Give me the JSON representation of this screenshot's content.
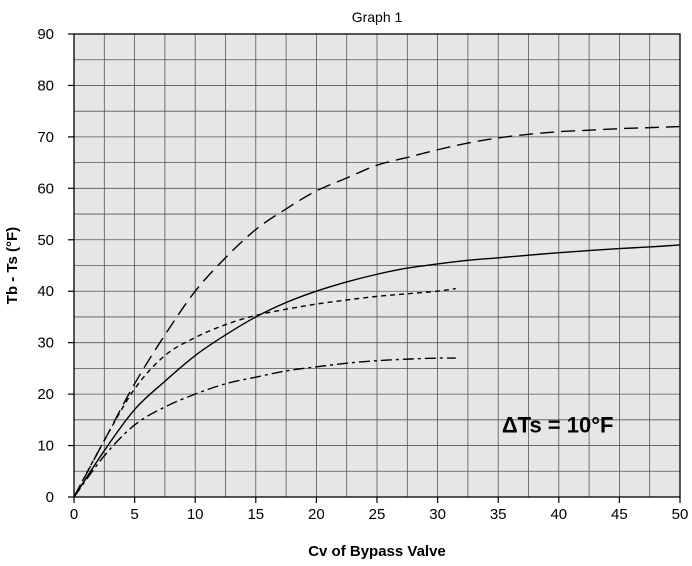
{
  "chart_data": {
    "type": "line",
    "title": "Graph 1",
    "xlabel": "Cv of Bypass Valve",
    "ylabel": "Tb - Ts (°F)",
    "xlim": [
      0,
      50
    ],
    "ylim": [
      0,
      90
    ],
    "xticks": [
      "0",
      "5",
      "10",
      "15",
      "20",
      "25",
      "30",
      "35",
      "40",
      "45",
      "50"
    ],
    "yticks": [
      "0",
      "10",
      "20",
      "30",
      "40",
      "50",
      "60",
      "70",
      "80",
      "90"
    ],
    "grid": true,
    "annotation": "ΔTs = 10°F",
    "series": [
      {
        "style": "long-dash",
        "points": [
          [
            0,
            0
          ],
          [
            2.5,
            11
          ],
          [
            5,
            22
          ],
          [
            7.5,
            31.5
          ],
          [
            10,
            40
          ],
          [
            12.5,
            46.5
          ],
          [
            15,
            52
          ],
          [
            17.5,
            56
          ],
          [
            20,
            59.5
          ],
          [
            22.5,
            62
          ],
          [
            25,
            64.5
          ],
          [
            27.5,
            66
          ],
          [
            30,
            67.5
          ],
          [
            32.5,
            68.8
          ],
          [
            35,
            69.8
          ],
          [
            37.5,
            70.5
          ],
          [
            40,
            71
          ],
          [
            42.5,
            71.3
          ],
          [
            45,
            71.6
          ],
          [
            47.5,
            71.8
          ],
          [
            50,
            72
          ]
        ]
      },
      {
        "style": "solid",
        "points": [
          [
            0,
            0
          ],
          [
            2.5,
            9
          ],
          [
            5,
            17
          ],
          [
            7.5,
            22.5
          ],
          [
            10,
            27.5
          ],
          [
            12.5,
            31.5
          ],
          [
            15,
            35
          ],
          [
            17.5,
            37.8
          ],
          [
            20,
            40
          ],
          [
            22.5,
            41.8
          ],
          [
            25,
            43.3
          ],
          [
            27.5,
            44.5
          ],
          [
            30,
            45.3
          ],
          [
            32.5,
            46
          ],
          [
            35,
            46.5
          ],
          [
            37.5,
            47
          ],
          [
            40,
            47.5
          ],
          [
            42.5,
            47.9
          ],
          [
            45,
            48.3
          ],
          [
            47.5,
            48.6
          ],
          [
            50,
            49
          ]
        ]
      },
      {
        "style": "short-dash",
        "points": [
          [
            0,
            0
          ],
          [
            2.5,
            11
          ],
          [
            5,
            21
          ],
          [
            7.5,
            27.5
          ],
          [
            10,
            31
          ],
          [
            12.5,
            33.5
          ],
          [
            15,
            35.3
          ],
          [
            17.5,
            36.5
          ],
          [
            20,
            37.5
          ],
          [
            22.5,
            38.3
          ],
          [
            25,
            39
          ],
          [
            27.5,
            39.5
          ],
          [
            30,
            40
          ],
          [
            31.5,
            40.5
          ]
        ]
      },
      {
        "style": "dash-dot",
        "points": [
          [
            0,
            0
          ],
          [
            2.5,
            8
          ],
          [
            5,
            14
          ],
          [
            7.5,
            17.5
          ],
          [
            10,
            20
          ],
          [
            12.5,
            22
          ],
          [
            15,
            23.3
          ],
          [
            17.5,
            24.5
          ],
          [
            20,
            25.3
          ],
          [
            22.5,
            26
          ],
          [
            25,
            26.5
          ],
          [
            27.5,
            26.8
          ],
          [
            30,
            27
          ],
          [
            31.5,
            27
          ]
        ]
      }
    ]
  }
}
